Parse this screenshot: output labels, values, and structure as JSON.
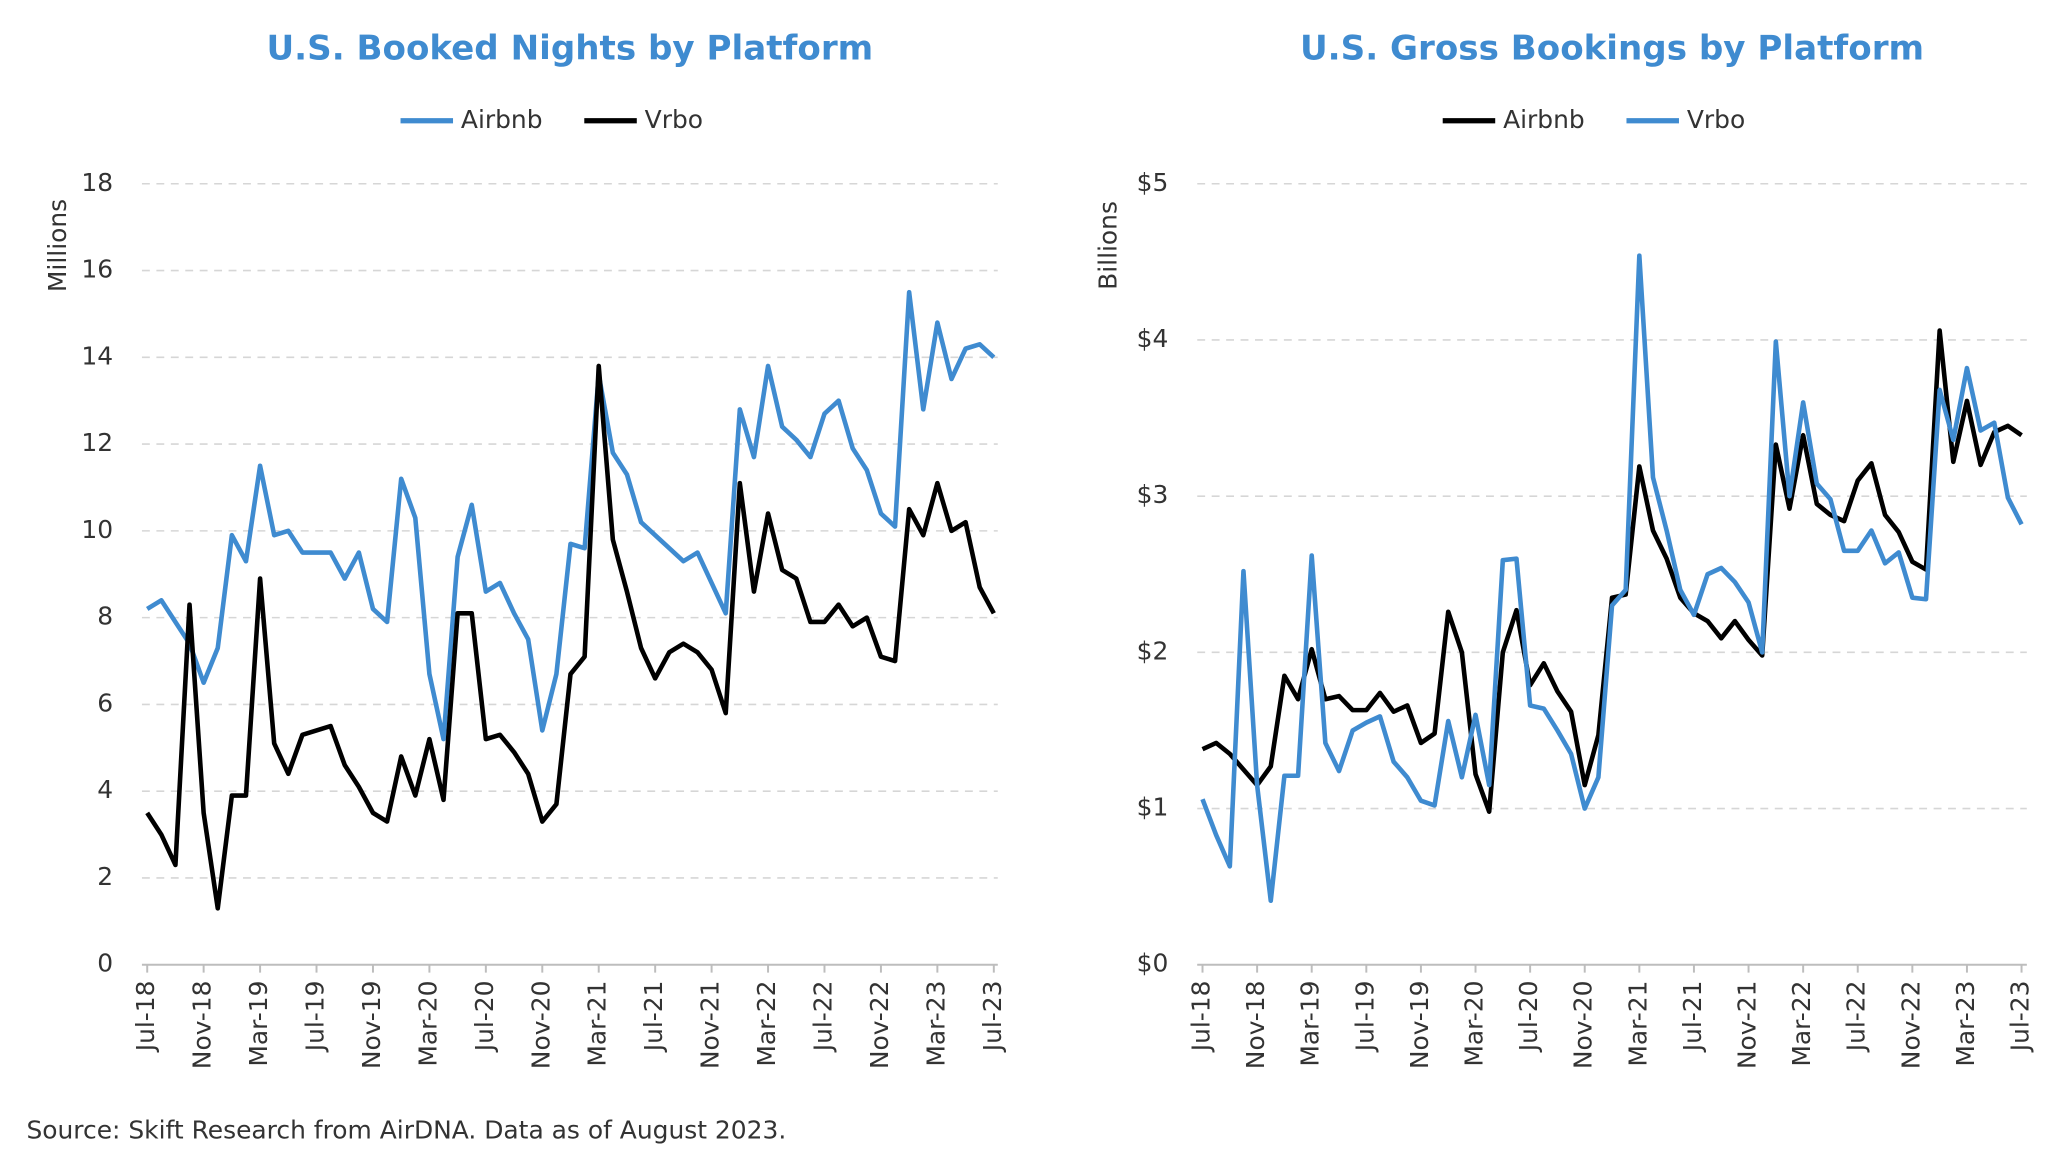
{
  "chart_data": [
    {
      "type": "line",
      "title": "U.S. Booked Nights by Platform",
      "y_label": "Millions",
      "categories": [
        "Jul-18",
        null,
        null,
        null,
        "Nov-18",
        null,
        null,
        null,
        "Mar-19",
        null,
        null,
        null,
        "Jul-19",
        null,
        null,
        null,
        "Nov-19",
        null,
        null,
        null,
        "Mar-20",
        null,
        null,
        null,
        "Jul-20",
        null,
        null,
        null,
        "Nov-20",
        null,
        null,
        null,
        "Mar-21",
        null,
        null,
        null,
        "Jul-21",
        null,
        null,
        null,
        "Nov-21",
        null,
        null,
        null,
        "Mar-22",
        null,
        null,
        null,
        "Jul-22",
        null,
        null,
        null,
        "Nov-22",
        null,
        null,
        null,
        "Mar-23",
        null,
        null,
        null,
        "Jul-23"
      ],
      "series": [
        {
          "name": "Airbnb",
          "color": "#3f8bd0",
          "values": [
            8.2,
            8.4,
            7.9,
            7.4,
            6.5,
            7.3,
            9.9,
            9.3,
            11.5,
            9.9,
            10.0,
            9.5,
            9.5,
            9.5,
            8.9,
            9.5,
            8.2,
            7.9,
            11.2,
            10.3,
            6.7,
            5.2,
            9.4,
            10.6,
            8.6,
            8.8,
            8.1,
            7.5,
            5.4,
            6.7,
            9.7,
            9.6,
            13.6,
            11.8,
            11.3,
            10.2,
            9.9,
            9.6,
            9.3,
            9.5,
            8.8,
            8.1,
            12.8,
            11.7,
            13.8,
            12.4,
            12.1,
            11.7,
            12.7,
            13.0,
            11.9,
            11.4,
            10.4,
            10.1,
            15.5,
            12.8,
            14.8,
            13.5,
            14.2,
            14.3,
            14.0
          ]
        },
        {
          "name": "Vrbo",
          "color": "#000000",
          "values": [
            3.5,
            3.0,
            2.3,
            8.3,
            3.5,
            1.3,
            3.9,
            3.9,
            8.9,
            5.1,
            4.4,
            5.3,
            5.4,
            5.5,
            4.6,
            4.1,
            3.5,
            3.3,
            4.8,
            3.9,
            5.2,
            3.8,
            8.1,
            8.1,
            5.2,
            5.3,
            4.9,
            4.4,
            3.3,
            3.7,
            6.7,
            7.1,
            13.8,
            9.8,
            8.6,
            7.3,
            6.6,
            7.2,
            7.4,
            7.2,
            6.8,
            5.8,
            11.1,
            8.6,
            10.4,
            9.1,
            8.9,
            7.9,
            7.9,
            8.3,
            7.8,
            8.0,
            7.1,
            7.0,
            10.5,
            9.9,
            11.1,
            10.0,
            10.2,
            8.7,
            8.1
          ]
        }
      ],
      "ylim": [
        0,
        18
      ],
      "yticks": [
        0,
        2,
        4,
        6,
        8,
        10,
        12,
        14,
        16,
        18
      ],
      "grid": true
    },
    {
      "type": "line",
      "title": "U.S. Gross Bookings by Platform",
      "y_label": "Billions",
      "categories": [
        "Jul-18",
        null,
        null,
        null,
        "Nov-18",
        null,
        null,
        null,
        "Mar-19",
        null,
        null,
        null,
        "Jul-19",
        null,
        null,
        null,
        "Nov-19",
        null,
        null,
        null,
        "Mar-20",
        null,
        null,
        null,
        "Jul-20",
        null,
        null,
        null,
        "Nov-20",
        null,
        null,
        null,
        "Mar-21",
        null,
        null,
        null,
        "Jul-21",
        null,
        null,
        null,
        "Nov-21",
        null,
        null,
        null,
        "Mar-22",
        null,
        null,
        null,
        "Jul-22",
        null,
        null,
        null,
        "Nov-22",
        null,
        null,
        null,
        "Mar-23",
        null,
        null,
        null,
        "Jul-23"
      ],
      "series": [
        {
          "name": "Airbnb",
          "color": "#000000",
          "values": [
            1.38,
            1.42,
            1.35,
            1.25,
            1.15,
            1.27,
            1.85,
            1.7,
            2.02,
            1.7,
            1.72,
            1.63,
            1.63,
            1.74,
            1.62,
            1.66,
            1.42,
            1.48,
            2.26,
            2.0,
            1.22,
            0.98,
            2.0,
            2.27,
            1.79,
            1.93,
            1.75,
            1.62,
            1.15,
            1.47,
            2.35,
            2.37,
            3.19,
            2.78,
            2.6,
            2.35,
            2.25,
            2.2,
            2.09,
            2.2,
            2.08,
            1.98,
            3.33,
            2.92,
            3.39,
            2.95,
            2.88,
            2.84,
            3.1,
            3.21,
            2.88,
            2.77,
            2.58,
            2.53,
            4.06,
            3.22,
            3.61,
            3.2,
            3.41,
            3.45,
            3.39
          ]
        },
        {
          "name": "Vrbo",
          "color": "#3f8bd0",
          "values": [
            1.06,
            0.83,
            0.63,
            2.52,
            1.15,
            0.41,
            1.21,
            1.21,
            2.62,
            1.42,
            1.24,
            1.5,
            1.55,
            1.59,
            1.3,
            1.2,
            1.05,
            1.02,
            1.56,
            1.2,
            1.6,
            1.15,
            2.59,
            2.6,
            1.66,
            1.64,
            1.5,
            1.35,
            1.0,
            1.2,
            2.3,
            2.4,
            4.54,
            3.12,
            2.78,
            2.4,
            2.24,
            2.5,
            2.54,
            2.45,
            2.32,
            2.0,
            3.99,
            3.0,
            3.6,
            3.08,
            2.98,
            2.65,
            2.65,
            2.78,
            2.57,
            2.64,
            2.35,
            2.34,
            3.68,
            3.36,
            3.82,
            3.42,
            3.47,
            2.99,
            2.82
          ]
        }
      ],
      "ylim": [
        0,
        5
      ],
      "yticks": [
        {
          "value": 0,
          "label": "$0"
        },
        {
          "value": 1,
          "label": "$1"
        },
        {
          "value": 2,
          "label": "$2"
        },
        {
          "value": 3,
          "label": "$3"
        },
        {
          "value": 4,
          "label": "$4"
        },
        {
          "value": 5,
          "label": "$5"
        }
      ],
      "grid": true
    }
  ],
  "source": "Source: Skift Research from AirDNA. Data as of August 2023."
}
